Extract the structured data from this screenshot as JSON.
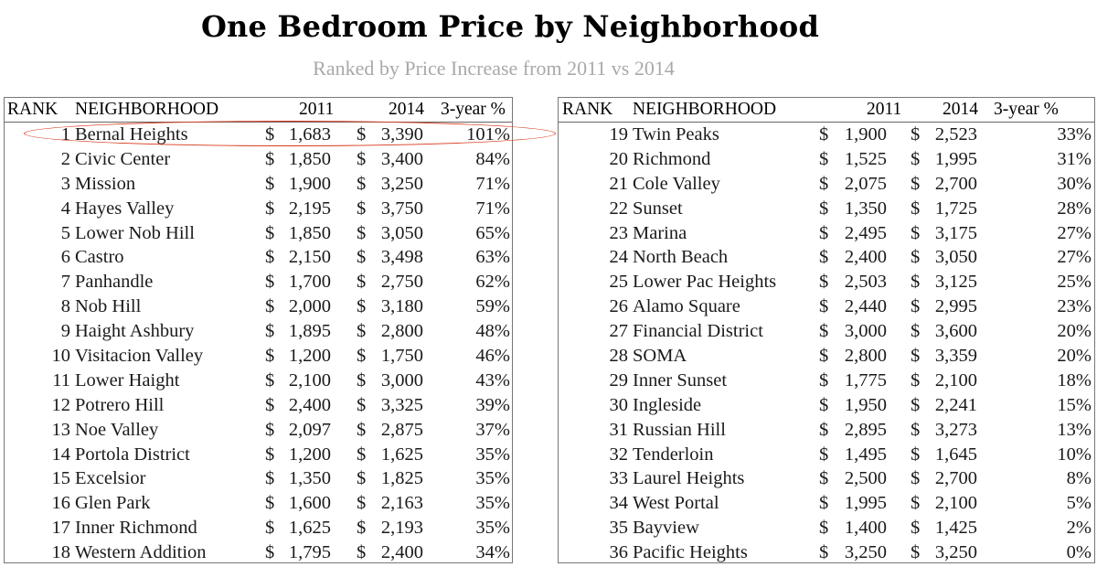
{
  "title": "One Bedroom Price by Neighborhood",
  "subtitle": "Ranked by Price Increase from 2011 vs 2014",
  "columns": {
    "rank": "RANK",
    "neighborhood": "NEIGHBORHOOD",
    "y2011": "2011",
    "y2014": "2014",
    "change": "3-year %"
  },
  "currency_symbol": "$",
  "highlight_color": "#d6391c",
  "left_table": [
    {
      "rank": "1",
      "name": "Bernal Heights",
      "p2011": "1,683",
      "p2014": "3,390",
      "pct": "101%"
    },
    {
      "rank": "2",
      "name": "Civic Center",
      "p2011": "1,850",
      "p2014": "3,400",
      "pct": "84%"
    },
    {
      "rank": "3",
      "name": "Mission",
      "p2011": "1,900",
      "p2014": "3,250",
      "pct": "71%"
    },
    {
      "rank": "4",
      "name": "Hayes Valley",
      "p2011": "2,195",
      "p2014": "3,750",
      "pct": "71%"
    },
    {
      "rank": "5",
      "name": "Lower Nob Hill",
      "p2011": "1,850",
      "p2014": "3,050",
      "pct": "65%"
    },
    {
      "rank": "6",
      "name": "Castro",
      "p2011": "2,150",
      "p2014": "3,498",
      "pct": "63%"
    },
    {
      "rank": "7",
      "name": "Panhandle",
      "p2011": "1,700",
      "p2014": "2,750",
      "pct": "62%"
    },
    {
      "rank": "8",
      "name": "Nob Hill",
      "p2011": "2,000",
      "p2014": "3,180",
      "pct": "59%"
    },
    {
      "rank": "9",
      "name": "Haight Ashbury",
      "p2011": "1,895",
      "p2014": "2,800",
      "pct": "48%"
    },
    {
      "rank": "10",
      "name": "Visitacion Valley",
      "p2011": "1,200",
      "p2014": "1,750",
      "pct": "46%"
    },
    {
      "rank": "11",
      "name": "Lower Haight",
      "p2011": "2,100",
      "p2014": "3,000",
      "pct": "43%"
    },
    {
      "rank": "12",
      "name": "Potrero Hill",
      "p2011": "2,400",
      "p2014": "3,325",
      "pct": "39%"
    },
    {
      "rank": "13",
      "name": "Noe Valley",
      "p2011": "2,097",
      "p2014": "2,875",
      "pct": "37%"
    },
    {
      "rank": "14",
      "name": "Portola District",
      "p2011": "1,200",
      "p2014": "1,625",
      "pct": "35%"
    },
    {
      "rank": "15",
      "name": "Excelsior",
      "p2011": "1,350",
      "p2014": "1,825",
      "pct": "35%"
    },
    {
      "rank": "16",
      "name": "Glen Park",
      "p2011": "1,600",
      "p2014": "2,163",
      "pct": "35%"
    },
    {
      "rank": "17",
      "name": "Inner Richmond",
      "p2011": "1,625",
      "p2014": "2,193",
      "pct": "35%"
    },
    {
      "rank": "18",
      "name": "Western Addition",
      "p2011": "1,795",
      "p2014": "2,400",
      "pct": "34%"
    }
  ],
  "right_table": [
    {
      "rank": "19",
      "name": "Twin Peaks",
      "p2011": "1,900",
      "p2014": "2,523",
      "pct": "33%"
    },
    {
      "rank": "20",
      "name": "Richmond",
      "p2011": "1,525",
      "p2014": "1,995",
      "pct": "31%"
    },
    {
      "rank": "21",
      "name": "Cole Valley",
      "p2011": "2,075",
      "p2014": "2,700",
      "pct": "30%"
    },
    {
      "rank": "22",
      "name": "Sunset",
      "p2011": "1,350",
      "p2014": "1,725",
      "pct": "28%"
    },
    {
      "rank": "23",
      "name": "Marina",
      "p2011": "2,495",
      "p2014": "3,175",
      "pct": "27%"
    },
    {
      "rank": "24",
      "name": "North Beach",
      "p2011": "2,400",
      "p2014": "3,050",
      "pct": "27%"
    },
    {
      "rank": "25",
      "name": "Lower Pac Heights",
      "p2011": "2,503",
      "p2014": "3,125",
      "pct": "25%"
    },
    {
      "rank": "26",
      "name": "Alamo Square",
      "p2011": "2,440",
      "p2014": "2,995",
      "pct": "23%"
    },
    {
      "rank": "27",
      "name": "Financial District",
      "p2011": "3,000",
      "p2014": "3,600",
      "pct": "20%"
    },
    {
      "rank": "28",
      "name": "SOMA",
      "p2011": "2,800",
      "p2014": "3,359",
      "pct": "20%"
    },
    {
      "rank": "29",
      "name": "Inner Sunset",
      "p2011": "1,775",
      "p2014": "2,100",
      "pct": "18%"
    },
    {
      "rank": "30",
      "name": "Ingleside",
      "p2011": "1,950",
      "p2014": "2,241",
      "pct": "15%"
    },
    {
      "rank": "31",
      "name": "Russian Hill",
      "p2011": "2,895",
      "p2014": "3,273",
      "pct": "13%"
    },
    {
      "rank": "32",
      "name": "Tenderloin",
      "p2011": "1,495",
      "p2014": "1,645",
      "pct": "10%"
    },
    {
      "rank": "33",
      "name": "Laurel Heights",
      "p2011": "2,500",
      "p2014": "2,700",
      "pct": "8%"
    },
    {
      "rank": "34",
      "name": "West Portal",
      "p2011": "1,995",
      "p2014": "2,100",
      "pct": "5%"
    },
    {
      "rank": "35",
      "name": "Bayview",
      "p2011": "1,400",
      "p2014": "1,425",
      "pct": "2%"
    },
    {
      "rank": "36",
      "name": "Pacific Heights",
      "p2011": "3,250",
      "p2014": "3,250",
      "pct": "0%"
    }
  ]
}
